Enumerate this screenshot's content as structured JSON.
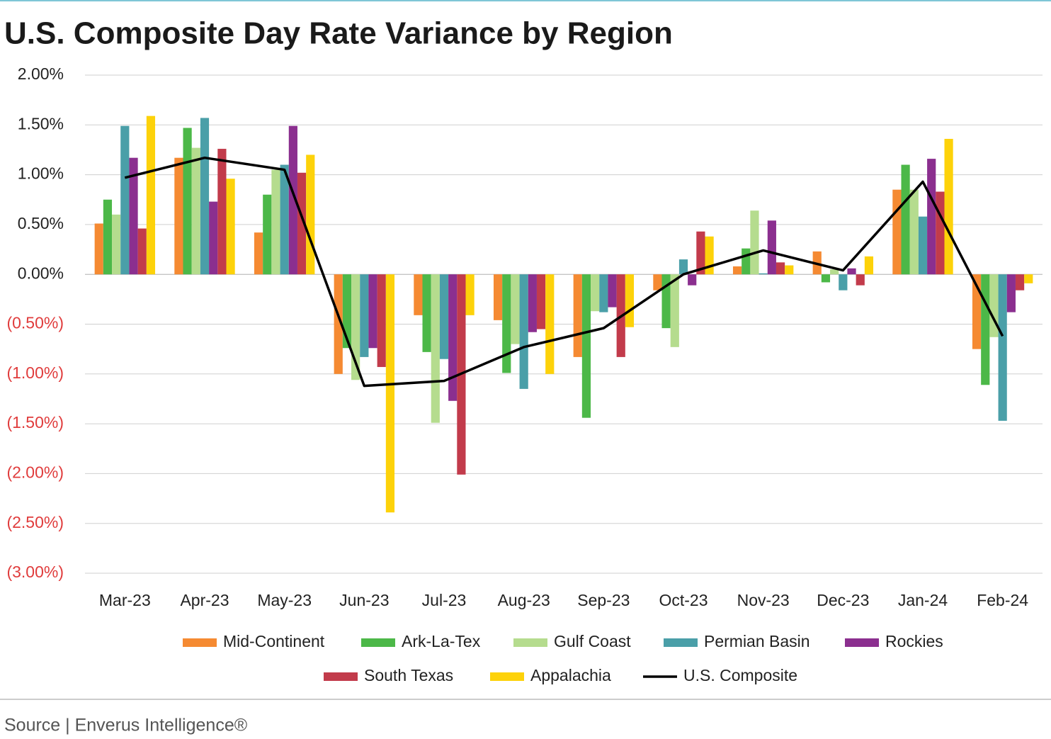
{
  "chart_data": {
    "type": "bar_line",
    "title": "U.S. Composite Day Rate Variance by Region",
    "source": "Source | Enverus Intelligence®",
    "categories": [
      "Mar-23",
      "Apr-23",
      "May-23",
      "Jun-23",
      "Jul-23",
      "Aug-23",
      "Sep-23",
      "Oct-23",
      "Nov-23",
      "Dec-23",
      "Jan-24",
      "Feb-24"
    ],
    "series": [
      {
        "name": "Mid-Continent",
        "color": "#f58a32",
        "values": [
          0.51,
          1.17,
          0.42,
          -1.0,
          -0.41,
          -0.46,
          -0.83,
          -0.16,
          0.08,
          0.23,
          0.85,
          -0.75
        ]
      },
      {
        "name": "Ark-La-Tex",
        "color": "#4cb848",
        "values": [
          0.75,
          1.47,
          0.8,
          -0.74,
          -0.78,
          -0.99,
          -1.44,
          -0.54,
          0.26,
          -0.08,
          1.1,
          -1.11
        ]
      },
      {
        "name": "Gulf Coast",
        "color": "#b5dc8e",
        "values": [
          0.6,
          1.27,
          1.05,
          -1.06,
          -1.49,
          -0.7,
          -0.37,
          -0.73,
          0.64,
          0.05,
          0.85,
          -0.63
        ]
      },
      {
        "name": "Permian Basin",
        "color": "#4a9fa8",
        "values": [
          1.49,
          1.57,
          1.1,
          -0.83,
          -0.85,
          -1.15,
          -0.38,
          0.15,
          0.01,
          -0.16,
          0.58,
          -1.47
        ]
      },
      {
        "name": "Rockies",
        "color": "#8b2f8f",
        "values": [
          1.17,
          0.73,
          1.49,
          -0.74,
          -1.27,
          -0.58,
          -0.33,
          -0.11,
          0.54,
          0.06,
          1.16,
          -0.38
        ]
      },
      {
        "name": "South Texas",
        "color": "#c23b4b",
        "values": [
          0.46,
          1.26,
          1.02,
          -0.93,
          -2.01,
          -0.55,
          -0.83,
          0.43,
          0.12,
          -0.11,
          0.83,
          -0.16
        ]
      },
      {
        "name": "Appalachia",
        "color": "#fdd20a",
        "values": [
          1.59,
          0.96,
          1.2,
          -2.39,
          -0.41,
          -1.0,
          -0.53,
          0.38,
          0.09,
          0.18,
          1.36,
          -0.09
        ]
      },
      {
        "name": "U.S. Composite",
        "color": "#000000",
        "type": "line",
        "values": [
          0.97,
          1.17,
          1.05,
          -1.12,
          -1.07,
          -0.73,
          -0.54,
          0.0,
          0.24,
          0.04,
          0.93,
          -0.62
        ]
      }
    ],
    "ylim": [
      -3,
      2
    ],
    "yticks": [
      {
        "value": 2,
        "label": "2.00%"
      },
      {
        "value": 1.5,
        "label": "1.50%"
      },
      {
        "value": 1,
        "label": "1.00%"
      },
      {
        "value": 0.5,
        "label": "0.50%"
      },
      {
        "value": 0,
        "label": "0.00%"
      },
      {
        "value": -0.5,
        "label": "(0.50%)"
      },
      {
        "value": -1,
        "label": "(1.00%)"
      },
      {
        "value": -1.5,
        "label": "(1.50%)"
      },
      {
        "value": -2,
        "label": "(2.00%)"
      },
      {
        "value": -2.5,
        "label": "(2.50%)"
      },
      {
        "value": -3,
        "label": "(3.00%)"
      }
    ],
    "negative_tick_color": "#e03c3c",
    "grid": true
  }
}
